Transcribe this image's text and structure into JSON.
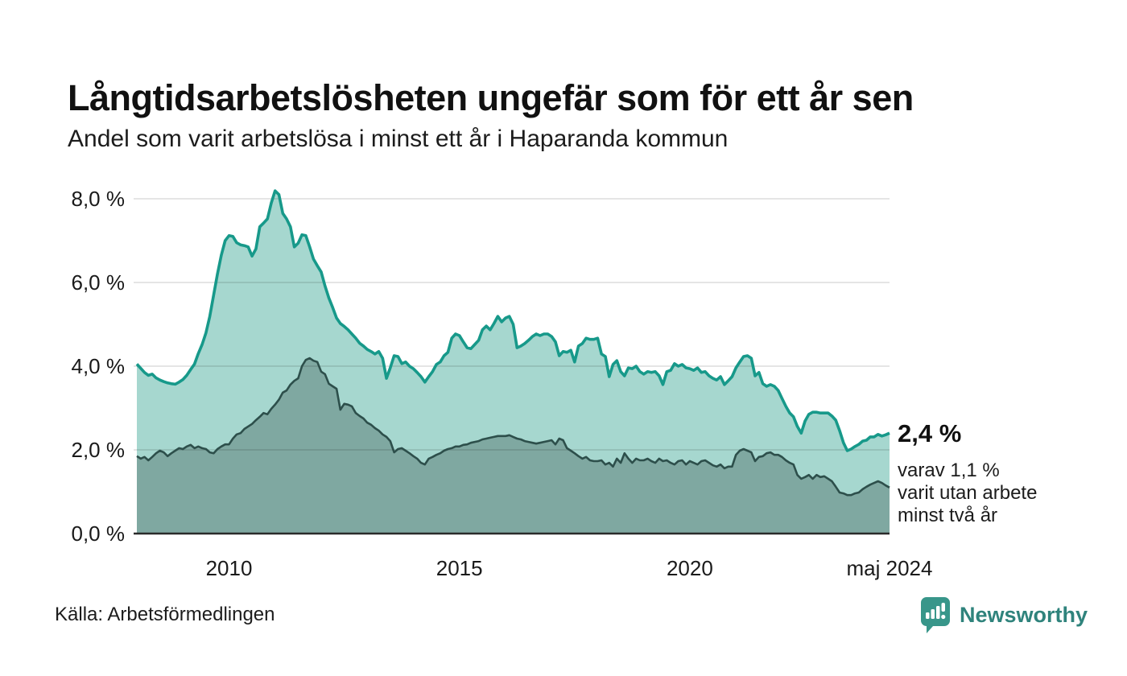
{
  "header": {
    "title": "Långtidsarbetslösheten ungefär som för ett år sen",
    "subtitle": "Andel som varit arbetslösa i minst ett år i Haparanda kommun"
  },
  "annotation": {
    "value": "2,4 %",
    "note_line1": "varav 1,1 %",
    "note_line2": "varit utan arbete",
    "note_line3": "minst två år"
  },
  "footer": {
    "source": "Källa: Arbetsförmedlingen",
    "brand": "Newsworthy"
  },
  "colors": {
    "line1": "#17998a",
    "fill1": "#a6d7cf",
    "line2": "#2d4f4b",
    "fill2": "#7fa8a1",
    "grid": "rgba(0,0,0,0.10)",
    "axis": "#2b2b2b",
    "text": "#1a1a1a",
    "brand": "#2f837c",
    "brand_icon": "#38968a"
  },
  "chart_data": {
    "type": "area",
    "title": "Långtidsarbetslösheten ungefär som för ett år sen",
    "subtitle": "Andel som varit arbetslösa i minst ett år i Haparanda kommun",
    "unit": "%",
    "frequency": "monthly",
    "x_start": "2008-01",
    "x_end": "2024-05",
    "ylim": [
      0,
      8.4
    ],
    "grid": "horizontal",
    "legend_position": "none (end-of-line annotation)",
    "yticks": [
      {
        "value": 0,
        "label": "0,0 %"
      },
      {
        "value": 2,
        "label": "2,0 %"
      },
      {
        "value": 4,
        "label": "4,0 %"
      },
      {
        "value": 6,
        "label": "6,0 %"
      },
      {
        "value": 8,
        "label": "8,0 %"
      }
    ],
    "xticks": [
      {
        "year": 2010,
        "label": "2010"
      },
      {
        "year": 2015,
        "label": "2015"
      },
      {
        "year": 2020,
        "label": "2020"
      },
      {
        "year": 2024.3333,
        "label": "maj 2024"
      }
    ],
    "series": [
      {
        "name": "Andel arbetslösa minst ett år",
        "end_value_label": "2,4 %",
        "values": [
          4.05,
          3.95,
          3.85,
          3.78,
          3.81,
          3.72,
          3.67,
          3.63,
          3.6,
          3.58,
          3.57,
          3.62,
          3.68,
          3.78,
          3.92,
          4.05,
          4.3,
          4.52,
          4.8,
          5.19,
          5.7,
          6.21,
          6.65,
          7.0,
          7.12,
          7.1,
          6.95,
          6.9,
          6.88,
          6.85,
          6.63,
          6.8,
          7.33,
          7.42,
          7.52,
          7.9,
          8.19,
          8.1,
          7.65,
          7.52,
          7.33,
          6.85,
          6.94,
          7.14,
          7.12,
          6.85,
          6.56,
          6.4,
          6.25,
          5.92,
          5.63,
          5.4,
          5.15,
          5.02,
          4.95,
          4.87,
          4.77,
          4.67,
          4.55,
          4.48,
          4.4,
          4.35,
          4.29,
          4.35,
          4.19,
          3.71,
          3.96,
          4.25,
          4.23,
          4.06,
          4.1,
          4.0,
          3.94,
          3.85,
          3.75,
          3.62,
          3.75,
          3.87,
          4.04,
          4.1,
          4.25,
          4.33,
          4.67,
          4.77,
          4.73,
          4.58,
          4.44,
          4.42,
          4.52,
          4.62,
          4.87,
          4.96,
          4.87,
          5.02,
          5.19,
          5.06,
          5.15,
          5.19,
          5.0,
          4.44,
          4.48,
          4.54,
          4.62,
          4.71,
          4.77,
          4.73,
          4.77,
          4.77,
          4.71,
          4.58,
          4.25,
          4.35,
          4.33,
          4.38,
          4.1,
          4.48,
          4.54,
          4.67,
          4.64,
          4.64,
          4.67,
          4.29,
          4.23,
          3.75,
          4.04,
          4.13,
          3.87,
          3.77,
          3.96,
          3.94,
          4.0,
          3.87,
          3.81,
          3.87,
          3.85,
          3.87,
          3.77,
          3.56,
          3.87,
          3.9,
          4.06,
          4.0,
          4.04,
          3.96,
          3.94,
          3.9,
          3.96,
          3.85,
          3.87,
          3.77,
          3.71,
          3.67,
          3.75,
          3.56,
          3.65,
          3.75,
          3.96,
          4.1,
          4.23,
          4.25,
          4.19,
          3.77,
          3.85,
          3.58,
          3.52,
          3.56,
          3.52,
          3.42,
          3.23,
          3.04,
          2.88,
          2.79,
          2.56,
          2.4,
          2.69,
          2.85,
          2.9,
          2.9,
          2.88,
          2.88,
          2.88,
          2.81,
          2.71,
          2.46,
          2.17,
          1.98,
          2.02,
          2.08,
          2.13,
          2.21,
          2.23,
          2.31,
          2.31,
          2.37,
          2.33,
          2.36,
          2.4
        ]
      },
      {
        "name": "Andel utan arbete minst två år",
        "end_value_label": "1,1 %",
        "values": [
          1.85,
          1.79,
          1.83,
          1.75,
          1.83,
          1.92,
          1.98,
          1.94,
          1.85,
          1.92,
          1.98,
          2.04,
          2.02,
          2.08,
          2.12,
          2.04,
          2.08,
          2.04,
          2.02,
          1.94,
          1.92,
          2.02,
          2.08,
          2.13,
          2.13,
          2.27,
          2.37,
          2.4,
          2.5,
          2.56,
          2.62,
          2.71,
          2.79,
          2.88,
          2.85,
          2.98,
          3.08,
          3.2,
          3.37,
          3.42,
          3.56,
          3.65,
          3.71,
          4.0,
          4.15,
          4.19,
          4.13,
          4.1,
          3.87,
          3.81,
          3.58,
          3.52,
          3.46,
          2.96,
          3.1,
          3.08,
          3.04,
          2.88,
          2.81,
          2.75,
          2.65,
          2.6,
          2.52,
          2.46,
          2.37,
          2.31,
          2.21,
          1.94,
          2.02,
          2.04,
          1.98,
          1.92,
          1.85,
          1.79,
          1.69,
          1.65,
          1.79,
          1.83,
          1.88,
          1.92,
          1.98,
          2.02,
          2.04,
          2.08,
          2.08,
          2.12,
          2.13,
          2.17,
          2.19,
          2.21,
          2.25,
          2.27,
          2.29,
          2.31,
          2.33,
          2.33,
          2.33,
          2.35,
          2.31,
          2.27,
          2.25,
          2.21,
          2.19,
          2.17,
          2.15,
          2.17,
          2.19,
          2.21,
          2.23,
          2.13,
          2.27,
          2.23,
          2.04,
          1.98,
          1.92,
          1.85,
          1.79,
          1.83,
          1.75,
          1.73,
          1.73,
          1.75,
          1.65,
          1.69,
          1.6,
          1.79,
          1.69,
          1.92,
          1.79,
          1.69,
          1.79,
          1.75,
          1.75,
          1.79,
          1.73,
          1.69,
          1.79,
          1.73,
          1.75,
          1.69,
          1.65,
          1.73,
          1.75,
          1.65,
          1.73,
          1.69,
          1.65,
          1.73,
          1.75,
          1.69,
          1.63,
          1.6,
          1.65,
          1.56,
          1.6,
          1.6,
          1.88,
          1.98,
          2.02,
          1.98,
          1.94,
          1.73,
          1.83,
          1.85,
          1.92,
          1.94,
          1.88,
          1.88,
          1.83,
          1.75,
          1.69,
          1.65,
          1.4,
          1.31,
          1.35,
          1.4,
          1.31,
          1.4,
          1.35,
          1.37,
          1.31,
          1.25,
          1.12,
          0.98,
          0.96,
          0.92,
          0.92,
          0.96,
          0.98,
          1.06,
          1.12,
          1.17,
          1.21,
          1.25,
          1.21,
          1.15,
          1.1
        ]
      }
    ]
  }
}
